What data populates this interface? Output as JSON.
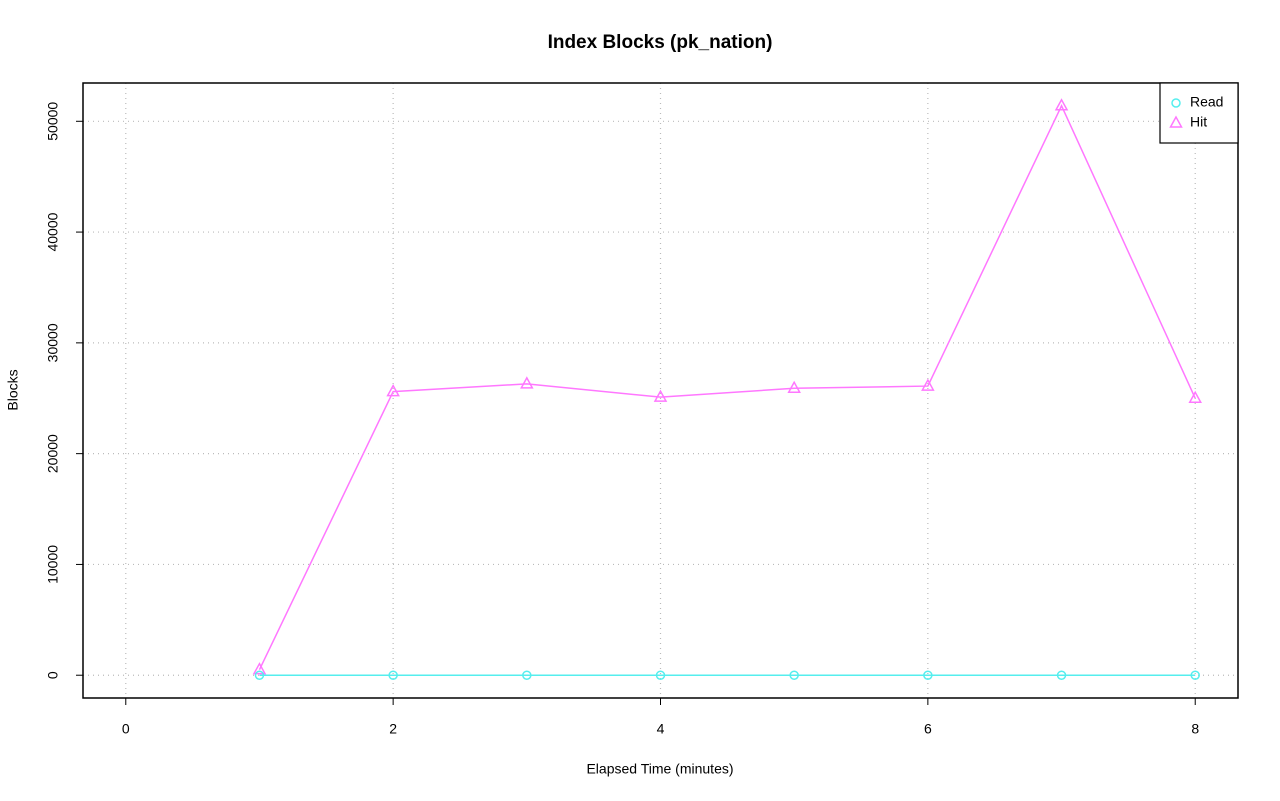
{
  "chart_data": {
    "type": "line",
    "title": "Index Blocks (pk_nation)",
    "x_label": "Elapsed Time (minutes)",
    "y_label": "Blocks",
    "x": [
      1,
      2,
      3,
      4,
      5,
      6,
      7,
      8
    ],
    "series": [
      {
        "name": "Read",
        "color": "#55eeee",
        "marker": "circle",
        "values": [
          0,
          0,
          0,
          0,
          0,
          0,
          0,
          0
        ]
      },
      {
        "name": "Hit",
        "color": "#ff77ff",
        "marker": "triangle",
        "values": [
          500,
          25600,
          26300,
          25100,
          25900,
          26100,
          51400,
          25000
        ]
      }
    ],
    "xlim": [
      -0.32,
      8.32
    ],
    "xticks": [
      0,
      2,
      4,
      6,
      8
    ],
    "ylim": [
      -2056,
      53456
    ],
    "yticks": [
      0,
      10000,
      20000,
      30000,
      40000,
      50000
    ],
    "grid": true,
    "legend": "top-right"
  }
}
